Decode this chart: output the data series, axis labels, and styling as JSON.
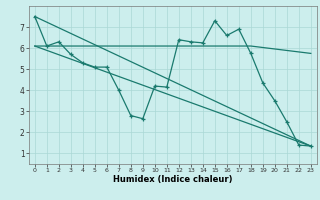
{
  "xlabel": "Humidex (Indice chaleur)",
  "bg_color": "#cceeed",
  "grid_color": "#aad8d5",
  "line_color": "#1a7a6e",
  "xlim": [
    -0.5,
    23.5
  ],
  "ylim": [
    0.5,
    8.0
  ],
  "yticks": [
    1,
    2,
    3,
    4,
    5,
    6,
    7
  ],
  "xticks": [
    0,
    1,
    2,
    3,
    4,
    5,
    6,
    7,
    8,
    9,
    10,
    11,
    12,
    13,
    14,
    15,
    16,
    17,
    18,
    19,
    20,
    21,
    22,
    23
  ],
  "line1_x": [
    0,
    1,
    2,
    3,
    4,
    5,
    6,
    7,
    8,
    9,
    10,
    11,
    12,
    13,
    14,
    15,
    16,
    17,
    18,
    19,
    20,
    21,
    22,
    23
  ],
  "line1_y": [
    7.5,
    6.1,
    6.3,
    5.7,
    5.3,
    5.1,
    5.1,
    4.0,
    2.8,
    2.65,
    4.2,
    4.15,
    6.4,
    6.3,
    6.25,
    7.3,
    6.6,
    6.9,
    5.75,
    4.35,
    3.5,
    2.5,
    1.4,
    1.35
  ],
  "line2_x": [
    0,
    18,
    23
  ],
  "line2_y": [
    6.1,
    6.1,
    5.75
  ],
  "line3_x": [
    0,
    23
  ],
  "line3_y": [
    7.5,
    1.35
  ],
  "line4_x": [
    0,
    23
  ],
  "line4_y": [
    6.1,
    1.35
  ]
}
